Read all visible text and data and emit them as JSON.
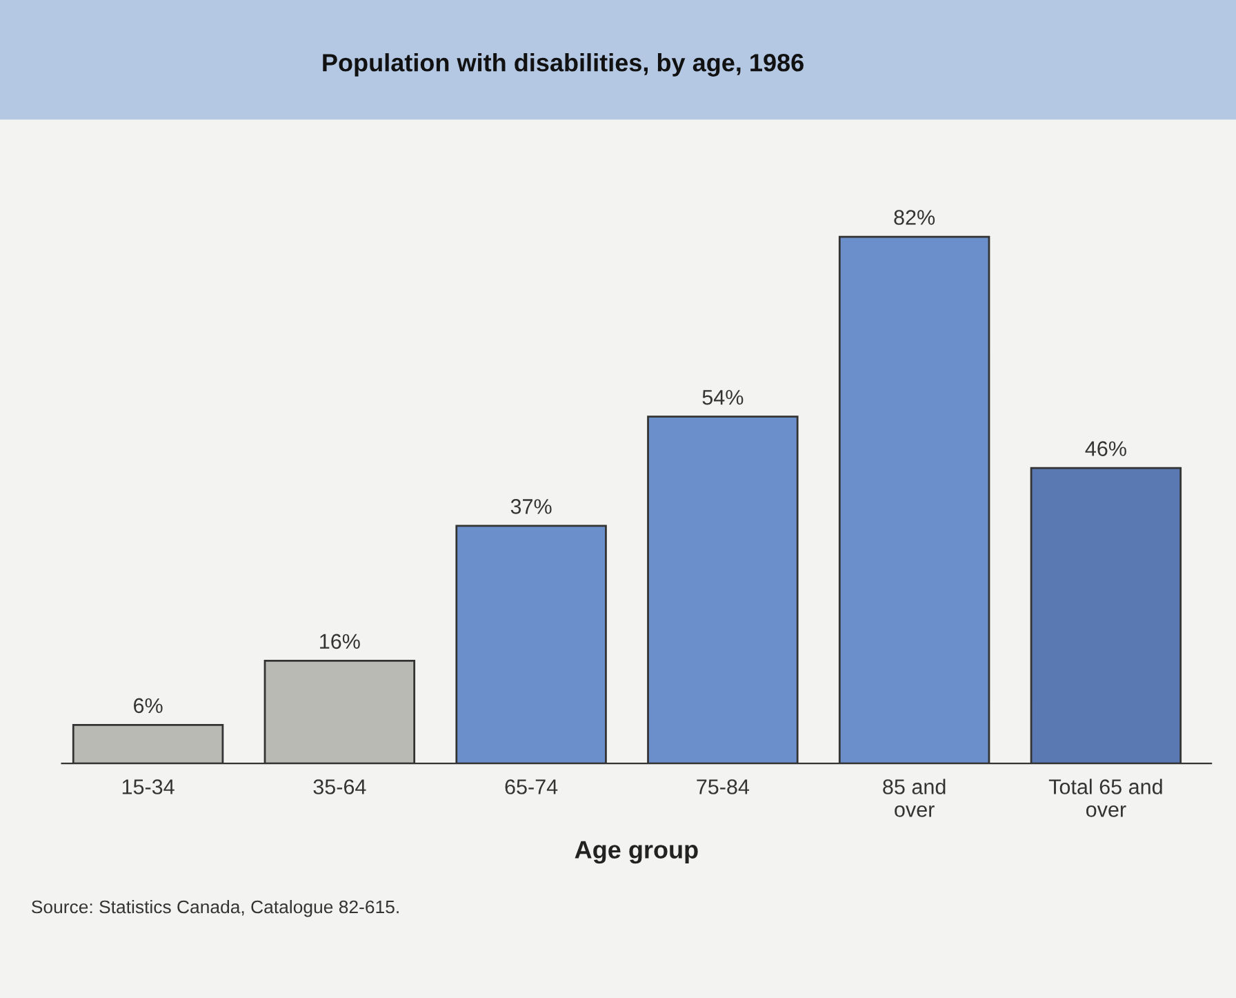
{
  "chart_data": {
    "type": "bar",
    "title": "Population with disabilities, by age, 1986",
    "xlabel": "Age group",
    "categories": [
      "15-34",
      "35-64",
      "65-74",
      "75-84",
      "85 and\nover",
      "Total 65 and\nover"
    ],
    "values": [
      6,
      16,
      37,
      54,
      82,
      46
    ],
    "colors": [
      "#b9bab4",
      "#b9bab4",
      "#6b8fcb",
      "#6b8fcb",
      "#6b8fcb",
      "#5a79b3"
    ],
    "value_labels": [
      "6%",
      "16%",
      "37%",
      "54%",
      "82%",
      "46%"
    ],
    "annotations": [
      "Source: Statistics Canada, Catalogue 82-615."
    ],
    "grid": false,
    "legend": false
  }
}
